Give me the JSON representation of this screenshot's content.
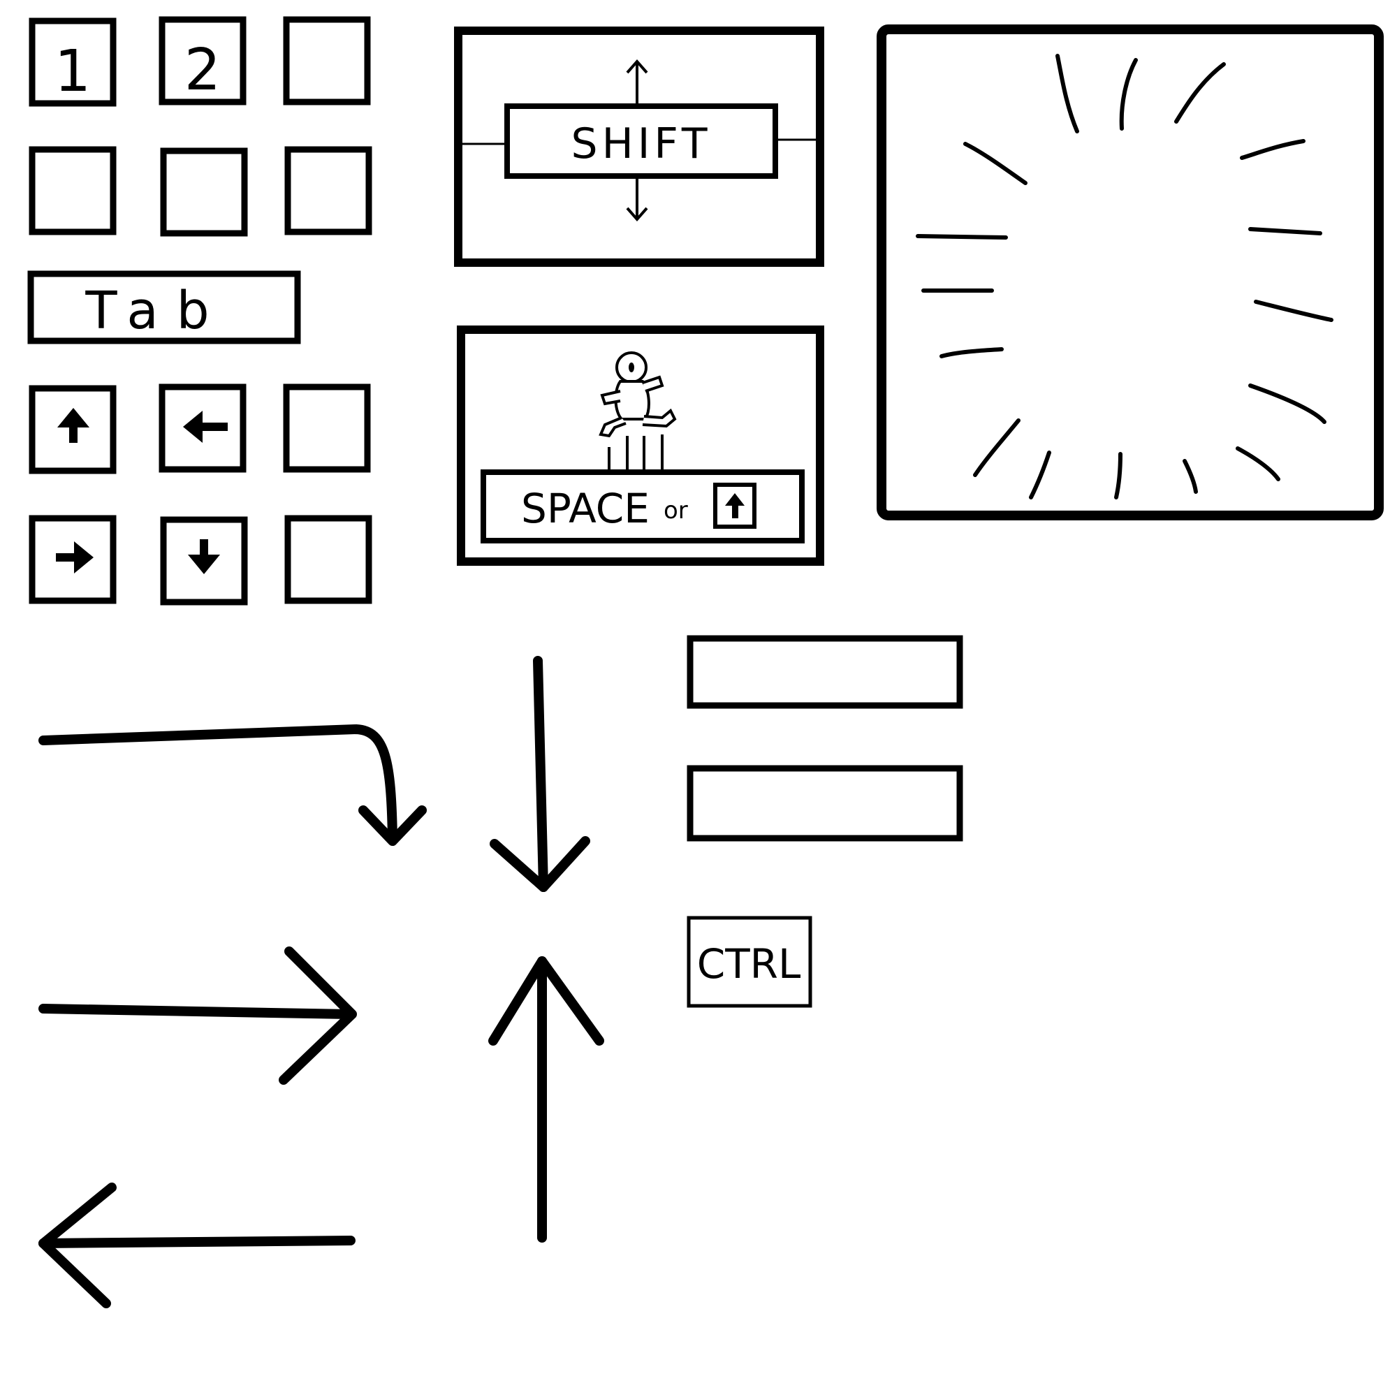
{
  "colors": {
    "ink": "#000000",
    "paper": "#ffffff"
  },
  "number_keys": [
    "1",
    "2",
    "",
    "",
    "",
    ""
  ],
  "tab_key": {
    "label": "Tab"
  },
  "arrow_keys": [
    {
      "icon": "arrow-up-icon"
    },
    {
      "icon": "arrow-left-icon"
    },
    {
      "icon": ""
    },
    {
      "icon": "arrow-right-icon"
    },
    {
      "icon": "arrow-down-icon"
    },
    {
      "icon": ""
    }
  ],
  "shift_panel": {
    "label": "SHIFT"
  },
  "jump_panel": {
    "space_label": "SPACE",
    "or_label": "or",
    "alt_key_icon": "arrow-up-icon"
  },
  "burst_panel": {
    "icon": "burst-lines-icon"
  },
  "ctrl_key": {
    "label": "CTRL"
  },
  "blank_bars": [
    "",
    ""
  ],
  "big_arrows": [
    "curved-arrow-down-icon",
    "arrow-right-icon",
    "arrow-left-icon",
    "arrow-down-icon",
    "arrow-up-icon"
  ]
}
